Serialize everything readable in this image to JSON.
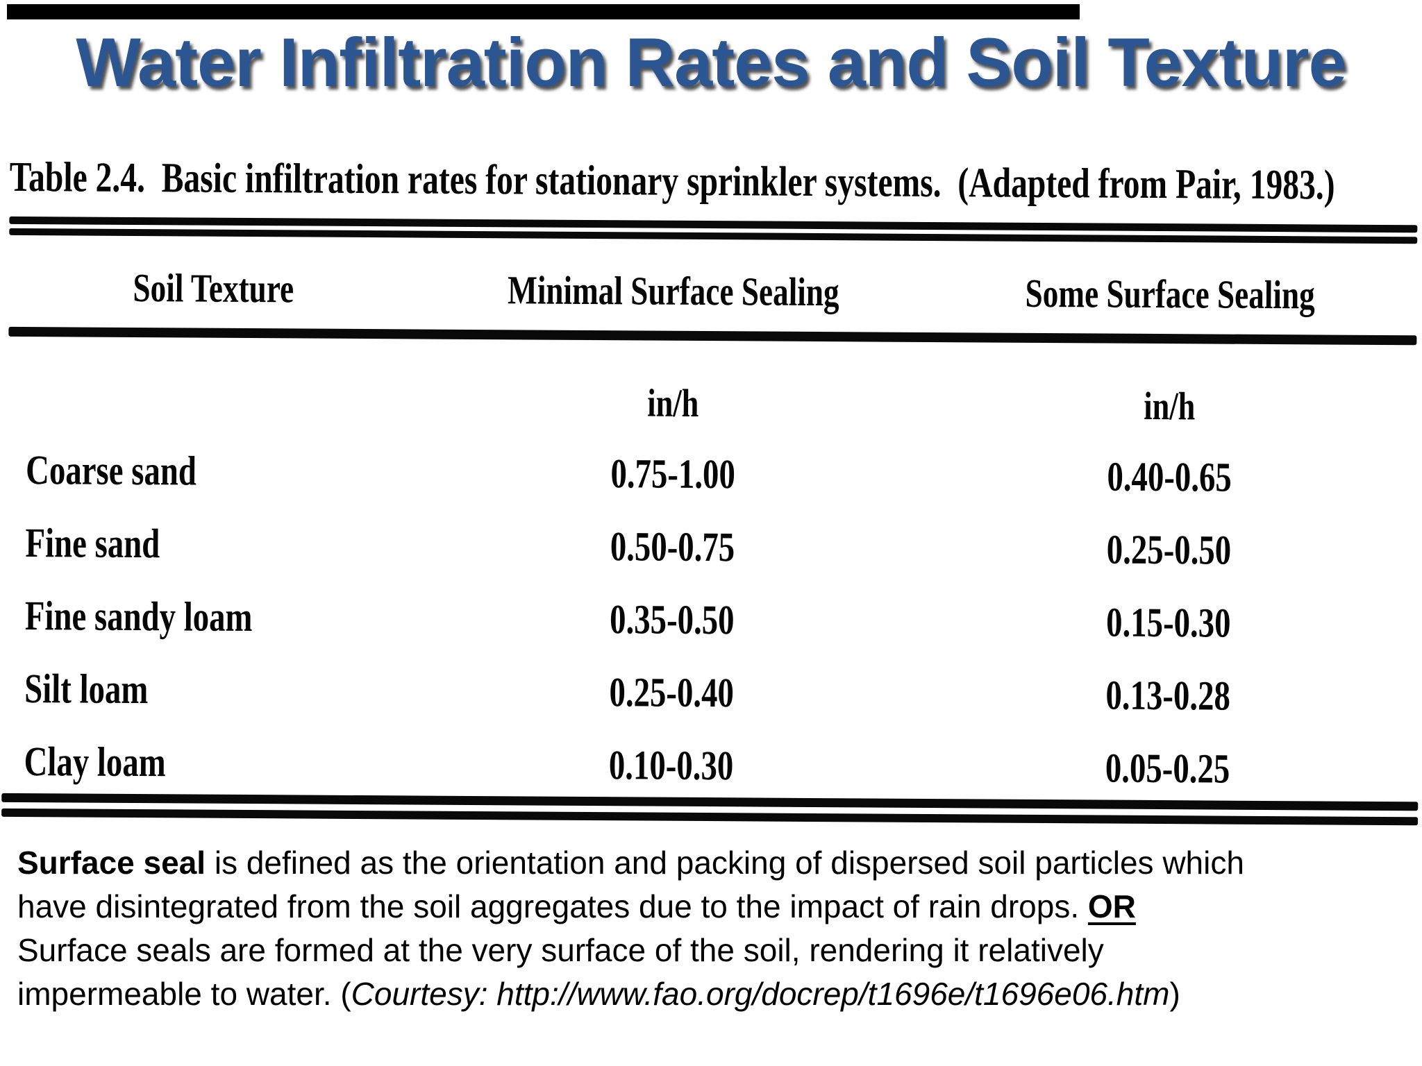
{
  "page": {
    "background_color": "#ffffff",
    "top_bar_color": "#000000"
  },
  "title": {
    "text": "Water Infiltration Rates and Soil Texture",
    "color": "#2b5691"
  },
  "table": {
    "caption": "Table 2.4.  Basic infiltration rates for stationary sprinkler systems.  (Adapted from Pair, 1983.)",
    "columns": [
      "Soil Texture",
      "Minimal Surface Sealing",
      "Some Surface Sealing"
    ],
    "units": [
      "in/h",
      "in/h"
    ],
    "rows": [
      [
        "Coarse sand",
        "0.75-1.00",
        "0.40-0.65"
      ],
      [
        "Fine sand",
        "0.50-0.75",
        "0.25-0.50"
      ],
      [
        "Fine sandy loam",
        "0.35-0.50",
        "0.15-0.30"
      ],
      [
        "Silt loam",
        "0.25-0.40",
        "0.13-0.28"
      ],
      [
        "Clay loam",
        "0.10-0.30",
        "0.05-0.25"
      ]
    ]
  },
  "description": {
    "segments": [
      {
        "style": "bold",
        "text": "Surface seal"
      },
      {
        "style": "normal",
        "text": " is defined as the orientation and packing of dispersed soil particles which"
      },
      {
        "br": true
      },
      {
        "style": "normal",
        "text": "have disintegrated from the soil aggregates due to the impact of rain drops. "
      },
      {
        "style": "bold-underline",
        "text": "OR"
      },
      {
        "br": true
      },
      {
        "style": "normal",
        "text": "Surface seals are formed at the very surface of the soil, rendering it relatively"
      },
      {
        "br": true
      },
      {
        "style": "normal",
        "text": "impermeable to water. ("
      },
      {
        "style": "italic",
        "text": "Courtesy: http://www.fao.org/docrep/t1696e/t1696e06.htm"
      },
      {
        "style": "normal",
        "text": ")"
      }
    ]
  }
}
